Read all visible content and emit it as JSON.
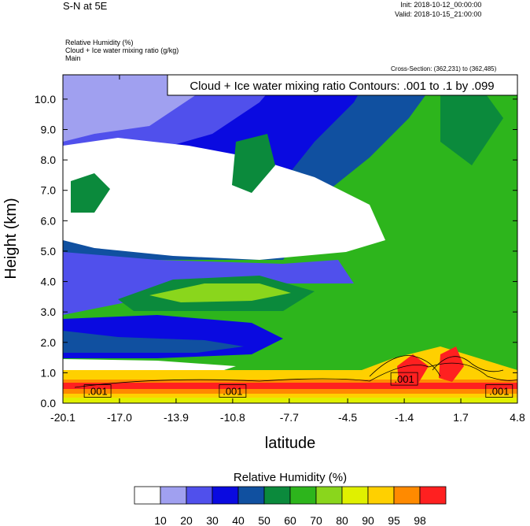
{
  "header": {
    "title": "S-N at 5E",
    "init": "Init: 2018-10-12_00:00:00",
    "valid": "Valid: 2018-10-15_21:00:00",
    "field1": "Relative Humidity   (%)",
    "field2": "Cloud + Ice water mixing ratio   (g/kg)",
    "field3": "Main",
    "cross_section": "Cross-Section: (362,231) to (362,485)"
  },
  "chart_data": {
    "type": "heatmap",
    "title": "S-N at 5E",
    "contour_box": "Cloud + Ice water mixing ratio Contours: .001 to .1 by .099",
    "xlabel": "latitude",
    "ylabel": "Height (km)",
    "xlim": [
      -20.1,
      4.8
    ],
    "ylim": [
      0.0,
      10.8
    ],
    "xticks": [
      "-20.1",
      "-17.0",
      "-13.9",
      "-10.8",
      "-7.7",
      "-4.5",
      "-1.4",
      "1.7",
      "4.8"
    ],
    "xtick_values": [
      -20.1,
      -17.0,
      -13.9,
      -10.8,
      -7.7,
      -4.5,
      -1.4,
      1.7,
      4.8
    ],
    "yticks": [
      "0.0",
      "1.0",
      "2.0",
      "3.0",
      "4.0",
      "5.0",
      "6.0",
      "7.0",
      "8.0",
      "9.0",
      "10.0"
    ],
    "ytick_values": [
      0,
      1,
      2,
      3,
      4,
      5,
      6,
      7,
      8,
      9,
      10
    ],
    "contour_labels": [
      {
        "text": ".001",
        "x": -18.2,
        "y": 0.4
      },
      {
        "text": ".001",
        "x": -10.8,
        "y": 0.4
      },
      {
        "text": ".001",
        "x": -1.4,
        "y": 0.8
      },
      {
        "text": ".001",
        "x": 3.8,
        "y": 0.4
      }
    ],
    "colorbar": {
      "title": "Relative Humidity  (%)",
      "levels": [
        "10",
        "20",
        "30",
        "40",
        "50",
        "60",
        "70",
        "80",
        "90",
        "95",
        "98"
      ],
      "colors": [
        "#ffffff",
        "#a0a0f0",
        "#5050ec",
        "#0a0ae0",
        "#1050a0",
        "#0b8a3c",
        "#2db51c",
        "#8ad61c",
        "#e0f000",
        "#ffd000",
        "#ff8a00",
        "#ff2020"
      ]
    }
  }
}
